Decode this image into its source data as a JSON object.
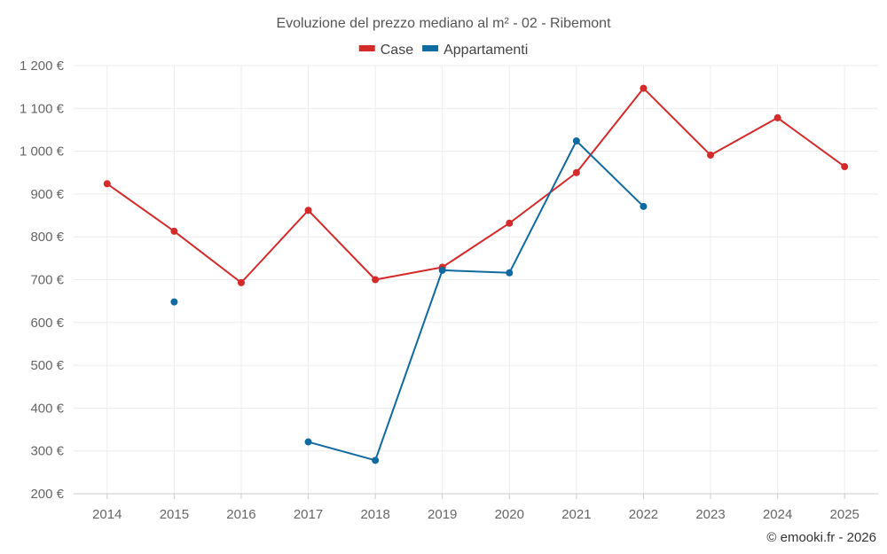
{
  "chart_data": {
    "type": "line",
    "title": "Evoluzione del prezzo mediano al m² - 02 - Ribemont",
    "xlabel": "",
    "ylabel": "",
    "categories": [
      "2014",
      "2015",
      "2016",
      "2017",
      "2018",
      "2019",
      "2020",
      "2021",
      "2022",
      "2023",
      "2024",
      "2025"
    ],
    "ylim": [
      200,
      1200
    ],
    "yticks": [
      200,
      300,
      400,
      500,
      600,
      700,
      800,
      900,
      1000,
      1100,
      1200
    ],
    "ytick_labels": [
      "200 €",
      "300 €",
      "400 €",
      "500 €",
      "600 €",
      "700 €",
      "800 €",
      "900 €",
      "1 000 €",
      "1 100 €",
      "1 200 €"
    ],
    "grid": true,
    "legend_position": "top-center",
    "series": [
      {
        "name": "Case",
        "color": "#d42a2a",
        "values": [
          924,
          813,
          693,
          862,
          700,
          729,
          832,
          950,
          1147,
          991,
          1078,
          964
        ]
      },
      {
        "name": "Appartamenti",
        "color": "#0f6aa0",
        "values": [
          null,
          648,
          null,
          321,
          278,
          722,
          716,
          1024,
          871,
          null,
          null,
          null
        ]
      }
    ],
    "credit": "© emooki.fr - 2026"
  }
}
